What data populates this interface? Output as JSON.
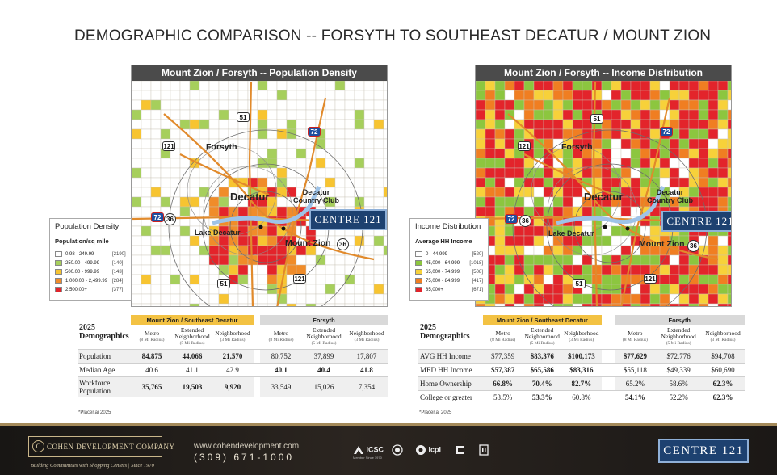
{
  "title": "DEMOGRAPHIC COMPARISON -- FORSYTH TO SOUTHEAST DECATUR / MOUNT ZION",
  "colors": {
    "density_1": "#ffffff",
    "density_2": "#a6cf5c",
    "density_3": "#f7c431",
    "density_4": "#f08c2a",
    "density_5": "#e3242b",
    "income_1": "#ffffff",
    "income_2": "#8cc63f",
    "income_3": "#f7d13a",
    "income_4": "#f07e22",
    "income_5": "#e3242b",
    "header_gold": "#f3c243",
    "badge_blue": "#1d4170"
  },
  "map_labels": {
    "forsyth": "Forsyth",
    "decatur": "Decatur",
    "country_club": "Decatur\nCountry Club",
    "lake": "Lake Decatur",
    "mount_zion": "Mount Zion",
    "badge": "CENTRE 121",
    "shields": {
      "us51": "51",
      "i72": "72",
      "s121": "121",
      "s36": "36"
    }
  },
  "density_map": {
    "title": "Mount Zion / Forsyth -- Population Density",
    "legend_title": "Population Density",
    "legend_sub": "Population/sq mile",
    "legend": [
      {
        "label": "0.98 - 249.99",
        "count": "[2190]"
      },
      {
        "label": "250.00 - 499.99",
        "count": "[140]"
      },
      {
        "label": "500.00 - 999.99",
        "count": "[143]"
      },
      {
        "label": "1,000.00 - 2,499.99",
        "count": "[284]"
      },
      {
        "label": "2,500.00+",
        "count": "[377]"
      }
    ]
  },
  "income_map": {
    "title": "Mount Zion / Forsyth -- Income Distribution",
    "legend_title": "Income Distribution",
    "legend_sub": "Average HH Income",
    "legend": [
      {
        "label": "0 - 44,999",
        "count": "[520]"
      },
      {
        "label": "45,000 - 64,999",
        "count": "[1018]"
      },
      {
        "label": "65,000 - 74,999",
        "count": "[508]"
      },
      {
        "label": "75,000 - 84,999",
        "count": "[417]"
      },
      {
        "label": "85,000+",
        "count": "[671]"
      }
    ]
  },
  "population_table": {
    "year": "2025",
    "heading": "Demographics",
    "group_a": "Mount Zion / Southeast Decatur",
    "group_b": "Forsyth",
    "columns": [
      {
        "name": "Metro",
        "radius": "(8 Mi Radius)"
      },
      {
        "name": "Extended Neighborhood",
        "radius": "(5 Mi Radius)"
      },
      {
        "name": "Neighborhood",
        "radius": "(3 Mi Radius)"
      }
    ],
    "rows": [
      {
        "label": "Population",
        "a": [
          "84,875",
          "44,066",
          "21,570"
        ],
        "b": [
          "80,752",
          "37,899",
          "17,807"
        ]
      },
      {
        "label": "Median Age",
        "a": [
          "40.6",
          "41.1",
          "42.9"
        ],
        "b": [
          "40.1",
          "40.4",
          "41.8"
        ]
      },
      {
        "label": "Workforce Population",
        "a": [
          "35,765",
          "19,503",
          "9,920"
        ],
        "b": [
          "33,549",
          "15,026",
          "7,354"
        ]
      }
    ],
    "footnote": "*Placer.ai 2025"
  },
  "income_table": {
    "year": "2025",
    "heading": "Demographics",
    "group_a": "Mount Zion / Southeast Decatur",
    "group_b": "Forsyth",
    "columns": [
      {
        "name": "Metro",
        "radius": "(8 Mi Radius)"
      },
      {
        "name": "Extended Neighborhood",
        "radius": "(5 Mi Radius)"
      },
      {
        "name": "Neighborhood",
        "radius": "(3 Mi Radius)"
      }
    ],
    "rows": [
      {
        "label": "AVG HH Income",
        "a": [
          "$77,359",
          "$83,376",
          "$100,173"
        ],
        "b": [
          "$77,629",
          "$72,776",
          "$94,708"
        ]
      },
      {
        "label": "MED HH Income",
        "a": [
          "$57,387",
          "$65,586",
          "$83,316"
        ],
        "b": [
          "$55,118",
          "$49,339",
          "$60,690"
        ]
      },
      {
        "label": "Home Ownership",
        "a": [
          "66.8%",
          "70.4%",
          "82.7%"
        ],
        "b": [
          "65.2%",
          "58.6%",
          "62.3%"
        ]
      },
      {
        "label": "College or greater",
        "a": [
          "53.5%",
          "53.3%",
          "60.8%"
        ],
        "b": [
          "54.1%",
          "52.2%",
          "62.3%"
        ]
      }
    ],
    "footnote": "*Placer.ai 2025"
  },
  "footer": {
    "company": "COHEN DEVELOPMENT COMPANY",
    "company_mark": "C",
    "tagline": "Building Communities with Shopping Centers  |  Since 1970",
    "website": "www.cohendevelopment.com",
    "phone": "(309) 671-1000",
    "icsc": "ICSC",
    "icsc_member": "Member Since 1970",
    "icpi": "Icpi",
    "badge": "CENTRE 121"
  }
}
